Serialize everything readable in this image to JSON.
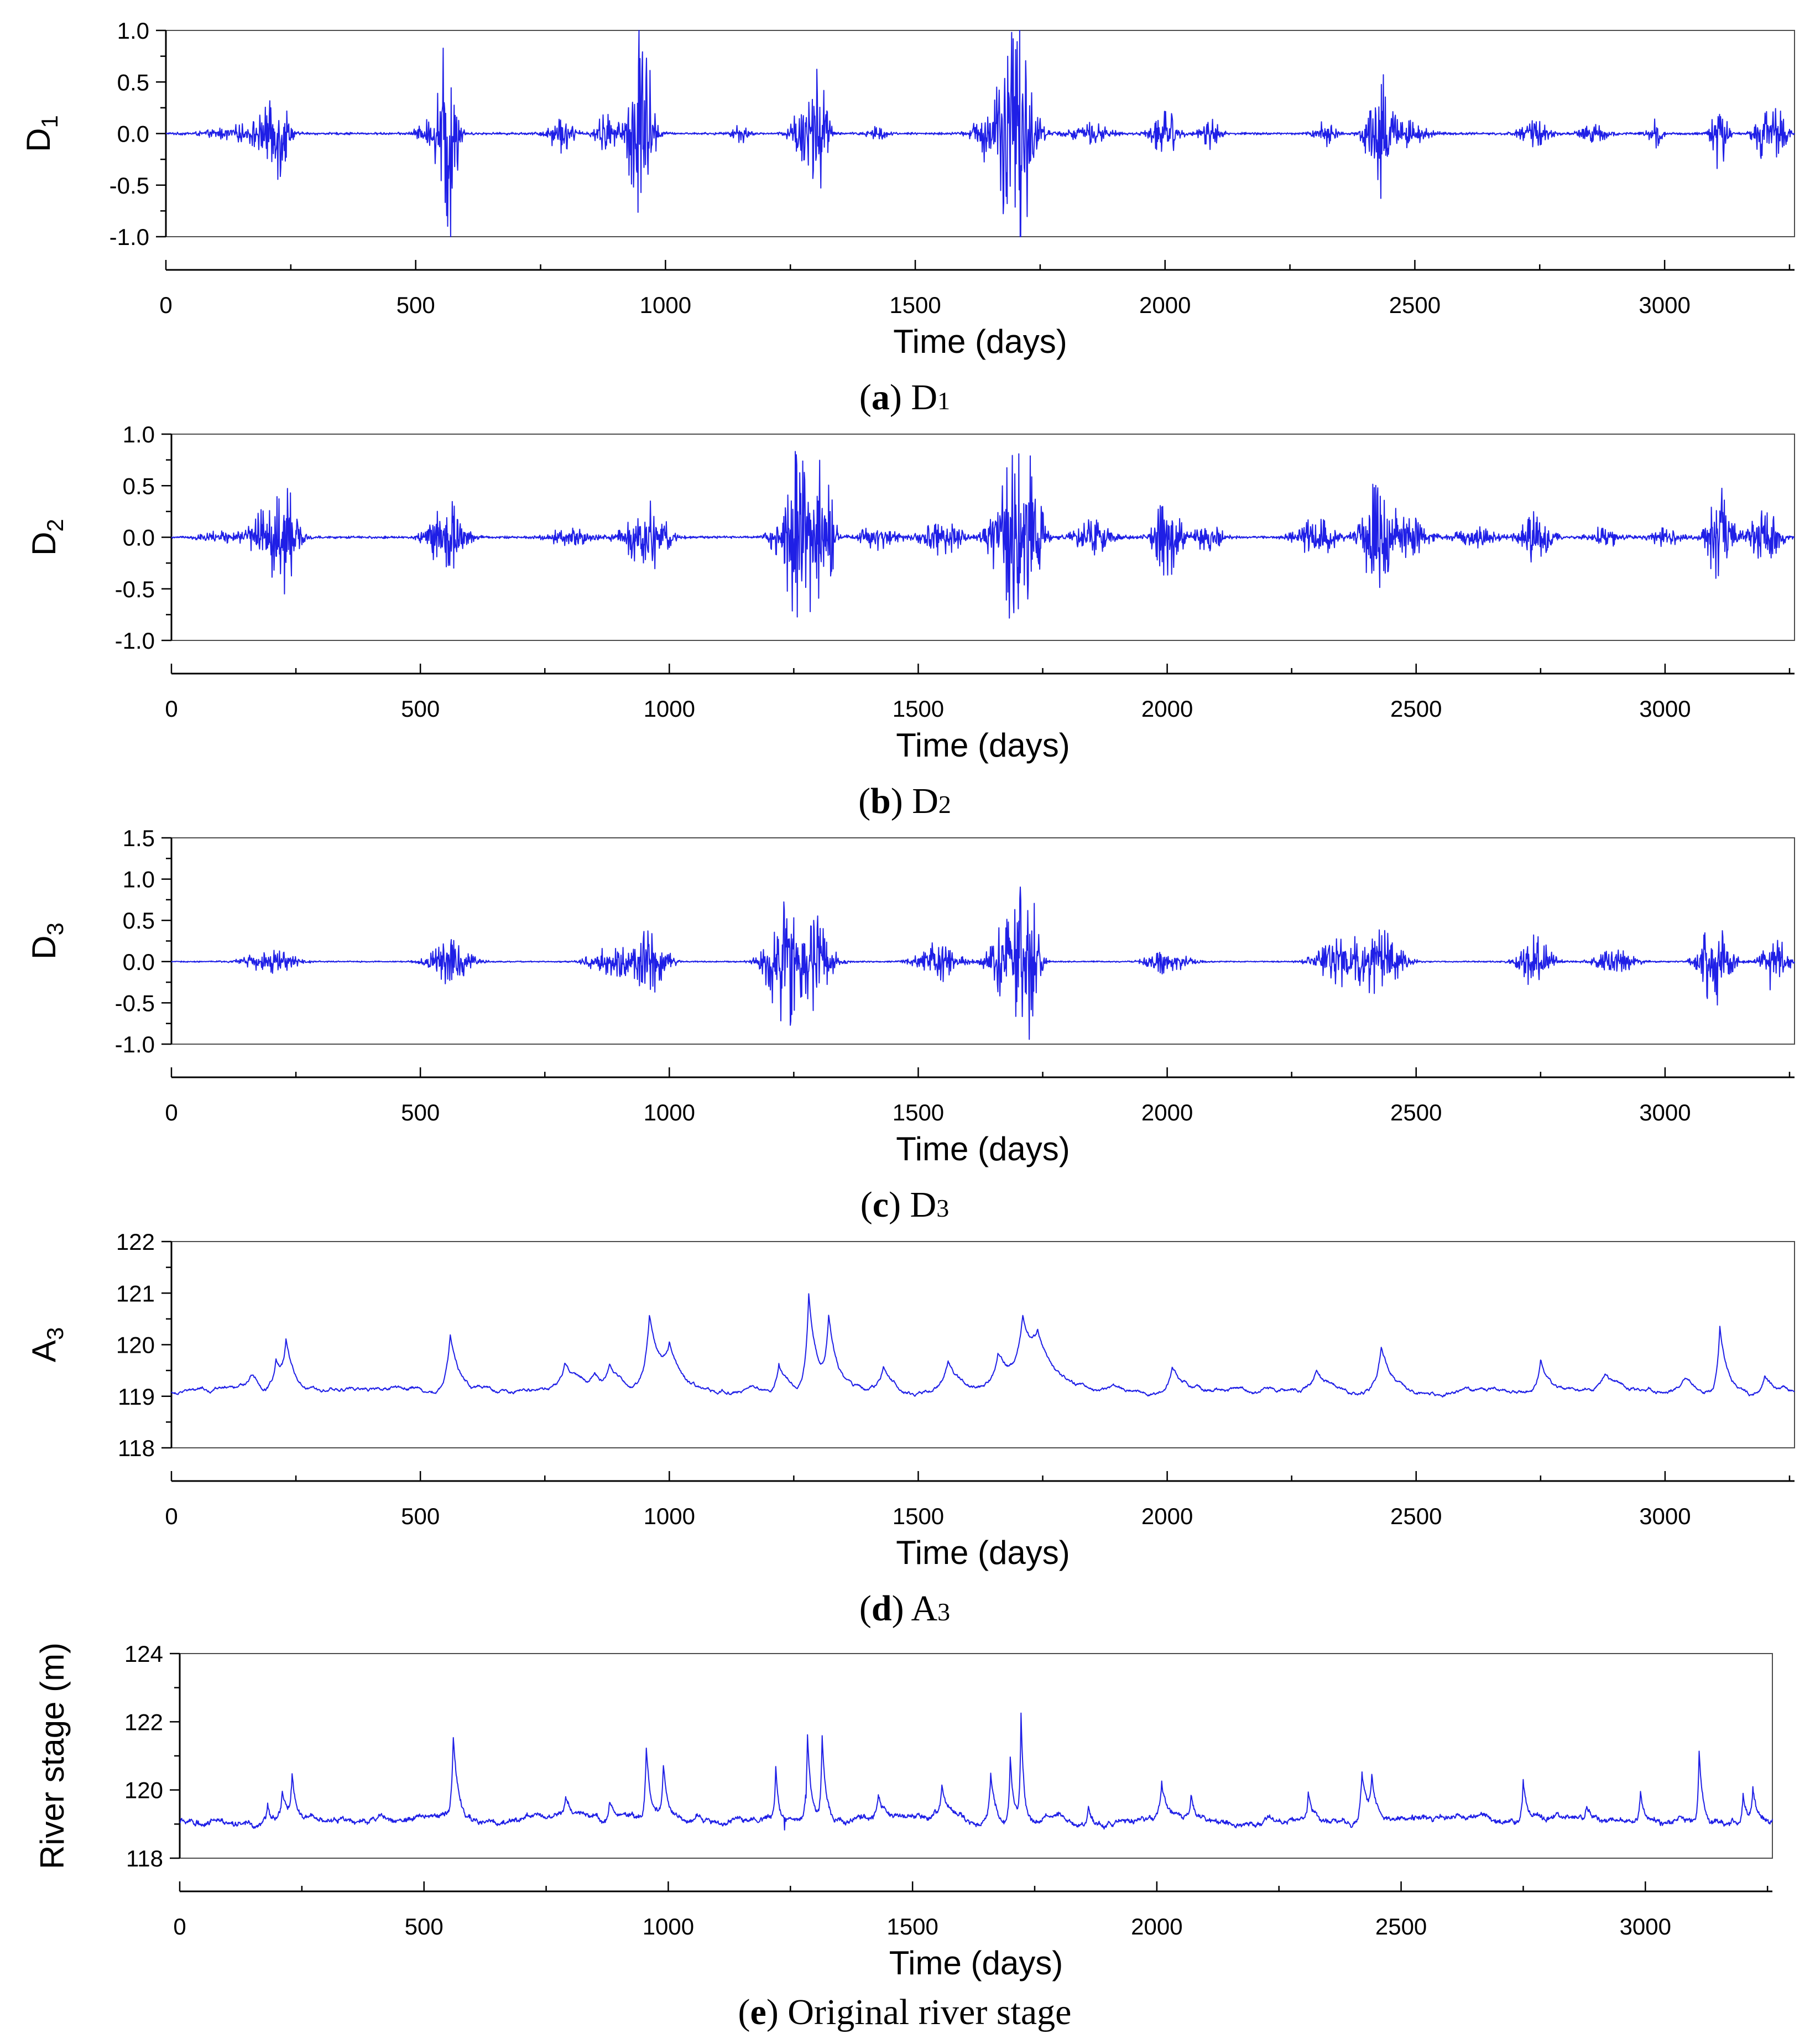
{
  "colors": {
    "series": "#1f1fe6"
  },
  "chart_data": [
    {
      "id": "a",
      "type": "line",
      "ylabel": "D",
      "ylabel_sub": "1",
      "xlabel": "Time (days)",
      "xlim": [
        0,
        3260
      ],
      "ylim": [
        -1.0,
        1.0
      ],
      "yticks": [
        -1.0,
        -0.5,
        0.0,
        0.5,
        1.0
      ],
      "ytick_labels": [
        "-1.0",
        "-0.5",
        "0.0",
        "0.5",
        "1.0"
      ],
      "xticks": [
        0,
        500,
        1000,
        1500,
        2000,
        2500,
        3000
      ],
      "xtick_labels": [
        "0",
        "500",
        "1000",
        "1500",
        "2000",
        "2500",
        "3000"
      ],
      "caption": {
        "letter": "a",
        "text": "D",
        "sub": "1"
      },
      "baseline": 0.0,
      "noise": 0.012,
      "bursts": [
        [
          210,
          0.24,
          30
        ],
        [
          230,
          0.3,
          15
        ],
        [
          150,
          0.08,
          60
        ],
        [
          560,
          0.9,
          18
        ],
        [
          575,
          0.55,
          12
        ],
        [
          520,
          0.12,
          20
        ],
        [
          790,
          0.18,
          25
        ],
        [
          880,
          0.2,
          20
        ],
        [
          955,
          0.85,
          20
        ],
        [
          940,
          0.4,
          25
        ],
        [
          1150,
          0.1,
          15
        ],
        [
          1280,
          0.45,
          25
        ],
        [
          1310,
          0.65,
          15
        ],
        [
          1420,
          0.08,
          20
        ],
        [
          1650,
          0.3,
          30
        ],
        [
          1690,
          0.85,
          25
        ],
        [
          1720,
          0.72,
          25
        ],
        [
          1850,
          0.1,
          40
        ],
        [
          2000,
          0.25,
          25
        ],
        [
          2090,
          0.15,
          20
        ],
        [
          2320,
          0.12,
          20
        ],
        [
          2420,
          0.58,
          20
        ],
        [
          2440,
          0.4,
          15
        ],
        [
          2480,
          0.15,
          40
        ],
        [
          2740,
          0.12,
          30
        ],
        [
          2860,
          0.08,
          30
        ],
        [
          2980,
          0.14,
          15
        ],
        [
          3110,
          0.47,
          15
        ],
        [
          3200,
          0.28,
          20
        ],
        [
          3230,
          0.2,
          15
        ]
      ]
    },
    {
      "id": "b",
      "type": "line",
      "ylabel": "D",
      "ylabel_sub": "2",
      "xlabel": "Time (days)",
      "xlim": [
        0,
        3260
      ],
      "ylim": [
        -1.0,
        1.0
      ],
      "yticks": [
        -1.0,
        -0.5,
        0.0,
        0.5,
        1.0
      ],
      "ytick_labels": [
        "-1.0",
        "-0.5",
        "0.0",
        "0.5",
        "1.0"
      ],
      "xticks": [
        0,
        500,
        1000,
        1500,
        2000,
        2500,
        3000
      ],
      "xtick_labels": [
        "0",
        "500",
        "1000",
        "1500",
        "2000",
        "2500",
        "3000"
      ],
      "caption": {
        "letter": "b",
        "text": "D",
        "sub": "2"
      },
      "baseline": 0.0,
      "noise": 0.012,
      "bursts": [
        [
          200,
          0.35,
          40
        ],
        [
          230,
          0.45,
          20
        ],
        [
          100,
          0.06,
          40
        ],
        [
          560,
          0.36,
          30
        ],
        [
          520,
          0.12,
          20
        ],
        [
          800,
          0.1,
          40
        ],
        [
          940,
          0.22,
          40
        ],
        [
          970,
          0.2,
          30
        ],
        [
          1240,
          0.45,
          30
        ],
        [
          1270,
          0.72,
          25
        ],
        [
          1310,
          0.72,
          20
        ],
        [
          1420,
          0.12,
          40
        ],
        [
          1550,
          0.18,
          40
        ],
        [
          1670,
          0.45,
          30
        ],
        [
          1700,
          0.6,
          30
        ],
        [
          1730,
          0.55,
          20
        ],
        [
          1850,
          0.18,
          40
        ],
        [
          2000,
          0.48,
          25
        ],
        [
          2080,
          0.15,
          30
        ],
        [
          2300,
          0.2,
          40
        ],
        [
          2420,
          0.55,
          30
        ],
        [
          2480,
          0.22,
          40
        ],
        [
          2620,
          0.1,
          40
        ],
        [
          2740,
          0.25,
          30
        ],
        [
          2880,
          0.12,
          30
        ],
        [
          3000,
          0.1,
          30
        ],
        [
          3110,
          0.5,
          25
        ],
        [
          3200,
          0.3,
          30
        ]
      ]
    },
    {
      "id": "c",
      "type": "line",
      "ylabel": "D",
      "ylabel_sub": "3",
      "xlabel": "Time (days)",
      "xlim": [
        0,
        3260
      ],
      "ylim": [
        -1.0,
        1.5
      ],
      "yticks": [
        -1.0,
        -0.5,
        0.0,
        0.5,
        1.0,
        1.5
      ],
      "ytick_labels": [
        "-1.0",
        "-0.5",
        "0.0",
        "0.5",
        "1.0",
        "1.5"
      ],
      "xticks": [
        0,
        500,
        1000,
        1500,
        2000,
        2500,
        3000
      ],
      "xtick_labels": [
        "0",
        "500",
        "1000",
        "1500",
        "2000",
        "2500",
        "3000"
      ],
      "caption": {
        "letter": "c",
        "text": "D",
        "sub": "3"
      },
      "baseline": 0.0,
      "noise": 0.008,
      "bursts": [
        [
          200,
          0.15,
          50
        ],
        [
          560,
          0.28,
          40
        ],
        [
          880,
          0.2,
          40
        ],
        [
          960,
          0.4,
          35
        ],
        [
          1230,
          0.8,
          35
        ],
        [
          1290,
          0.6,
          35
        ],
        [
          1540,
          0.25,
          40
        ],
        [
          1680,
          0.55,
          35
        ],
        [
          1720,
          1.0,
          20
        ],
        [
          2000,
          0.15,
          40
        ],
        [
          2350,
          0.3,
          50
        ],
        [
          2430,
          0.42,
          40
        ],
        [
          2740,
          0.35,
          30
        ],
        [
          2900,
          0.15,
          40
        ],
        [
          3100,
          0.6,
          30
        ],
        [
          3220,
          0.38,
          25
        ]
      ]
    },
    {
      "id": "d",
      "type": "line",
      "ylabel": "A",
      "ylabel_sub": "3",
      "xlabel": "Time (days)",
      "xlim": [
        0,
        3260
      ],
      "ylim": [
        118,
        122
      ],
      "yticks": [
        118,
        119,
        120,
        121,
        122
      ],
      "ytick_labels": [
        "118",
        "119",
        "120",
        "121",
        "122"
      ],
      "xticks": [
        0,
        500,
        1000,
        1500,
        2000,
        2500,
        3000
      ],
      "xtick_labels": [
        "0",
        "500",
        "1000",
        "1500",
        "2000",
        "2500",
        "3000"
      ],
      "caption": {
        "letter": "d",
        "text": "A",
        "sub": "3"
      },
      "baseline": 119.1,
      "noise": 0.02,
      "peaks": [
        [
          210,
          0.6,
          12
        ],
        [
          230,
          0.8,
          10
        ],
        [
          160,
          0.3,
          15
        ],
        [
          560,
          1.1,
          14
        ],
        [
          790,
          0.4,
          15
        ],
        [
          850,
          0.3,
          15
        ],
        [
          880,
          0.4,
          12
        ],
        [
          960,
          1.5,
          18
        ],
        [
          1000,
          0.6,
          15
        ],
        [
          1220,
          0.6,
          12
        ],
        [
          1280,
          1.8,
          10
        ],
        [
          1320,
          1.3,
          12
        ],
        [
          1430,
          0.4,
          15
        ],
        [
          1560,
          0.6,
          20
        ],
        [
          1660,
          0.7,
          18
        ],
        [
          1710,
          1.2,
          20
        ],
        [
          1740,
          0.7,
          25
        ],
        [
          2010,
          0.5,
          15
        ],
        [
          2300,
          0.4,
          15
        ],
        [
          2430,
          0.9,
          15
        ],
        [
          2750,
          0.6,
          12
        ],
        [
          2880,
          0.3,
          20
        ],
        [
          3040,
          0.3,
          20
        ],
        [
          3110,
          1.3,
          10
        ],
        [
          3200,
          0.4,
          12
        ]
      ]
    },
    {
      "id": "e",
      "type": "line",
      "ylabel": "River stage (m)",
      "ylabel_sub": "",
      "xlabel": "Time (days)",
      "xlim": [
        0,
        3260
      ],
      "ylim": [
        118,
        124
      ],
      "yticks": [
        118,
        120,
        122,
        124
      ],
      "ytick_labels": [
        "118",
        "120",
        "122",
        "124"
      ],
      "xticks": [
        0,
        500,
        1000,
        1500,
        2000,
        2500,
        3000
      ],
      "xtick_labels": [
        "0",
        "500",
        "1000",
        "1500",
        "2000",
        "2500",
        "3000"
      ],
      "caption": {
        "letter": "e",
        "text": "Original river stage",
        "sub": ""
      },
      "baseline": 119.1,
      "noise": 0.04,
      "peaks": [
        [
          210,
          0.8,
          6
        ],
        [
          230,
          1.2,
          5
        ],
        [
          180,
          0.5,
          6
        ],
        [
          560,
          2.3,
          6
        ],
        [
          790,
          0.5,
          8
        ],
        [
          880,
          0.6,
          6
        ],
        [
          955,
          2.1,
          6
        ],
        [
          990,
          1.5,
          6
        ],
        [
          1220,
          1.5,
          4
        ],
        [
          1285,
          2.5,
          5
        ],
        [
          1315,
          2.5,
          5
        ],
        [
          1430,
          0.6,
          6
        ],
        [
          1560,
          0.9,
          8
        ],
        [
          1660,
          1.3,
          6
        ],
        [
          1700,
          2.0,
          5
        ],
        [
          1722,
          3.1,
          4
        ],
        [
          1860,
          0.6,
          6
        ],
        [
          2010,
          1.0,
          6
        ],
        [
          2070,
          0.7,
          5
        ],
        [
          2310,
          0.8,
          5
        ],
        [
          2420,
          1.5,
          8
        ],
        [
          2440,
          1.2,
          6
        ],
        [
          2750,
          1.1,
          5
        ],
        [
          2880,
          0.4,
          8
        ],
        [
          2990,
          0.8,
          5
        ],
        [
          3110,
          2.2,
          5
        ],
        [
          3200,
          0.9,
          5
        ],
        [
          3220,
          0.9,
          5
        ]
      ]
    }
  ]
}
